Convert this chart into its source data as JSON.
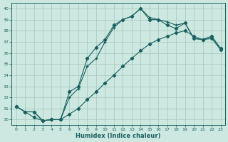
{
  "xlabel": "Humidex (Indice chaleur)",
  "bg_color": "#cce8e0",
  "grid_color": "#aaccc4",
  "line_color": "#1a6060",
  "xlim": [
    -0.5,
    23.5
  ],
  "ylim": [
    29.5,
    40.5
  ],
  "xticks": [
    0,
    1,
    2,
    3,
    4,
    5,
    6,
    7,
    8,
    9,
    10,
    11,
    12,
    13,
    14,
    15,
    16,
    17,
    18,
    19,
    20,
    21,
    22,
    23
  ],
  "yticks": [
    30,
    31,
    32,
    33,
    34,
    35,
    36,
    37,
    38,
    39,
    40
  ],
  "line1_x": [
    0,
    1,
    2,
    3,
    4,
    5,
    6,
    7,
    8,
    9,
    10,
    11,
    12,
    13,
    14,
    15,
    16,
    17,
    18,
    19,
    20,
    21,
    22,
    23
  ],
  "line1_y": [
    31.2,
    30.7,
    30.7,
    29.9,
    30.0,
    30.0,
    32.5,
    33.0,
    35.5,
    36.5,
    37.2,
    38.5,
    39.0,
    39.3,
    40.0,
    39.0,
    39.0,
    38.5,
    38.2,
    38.7,
    37.3,
    37.2,
    37.5,
    36.4
  ],
  "line2_x": [
    0,
    1,
    2,
    3,
    4,
    5,
    6,
    7,
    8,
    9,
    10,
    11,
    12,
    13,
    14,
    15,
    16,
    17,
    18,
    19,
    20,
    21,
    22,
    23
  ],
  "line2_y": [
    31.2,
    30.7,
    30.7,
    29.9,
    30.0,
    30.0,
    32.0,
    32.8,
    34.8,
    35.5,
    37.0,
    38.3,
    39.0,
    39.3,
    40.0,
    39.2,
    39.0,
    38.8,
    38.5,
    38.7,
    37.3,
    37.2,
    37.5,
    36.4
  ],
  "line3_x": [
    0,
    1,
    2,
    3,
    4,
    5,
    6,
    7,
    8,
    9,
    10,
    11,
    12,
    13,
    14,
    15,
    16,
    17,
    18,
    19,
    20,
    21,
    22,
    23
  ],
  "line3_y": [
    31.2,
    30.7,
    30.2,
    29.9,
    30.0,
    30.0,
    30.5,
    31.0,
    31.8,
    32.5,
    33.3,
    34.0,
    34.8,
    35.5,
    36.2,
    36.8,
    37.2,
    37.5,
    37.8,
    38.0,
    37.5,
    37.2,
    37.3,
    36.3
  ]
}
